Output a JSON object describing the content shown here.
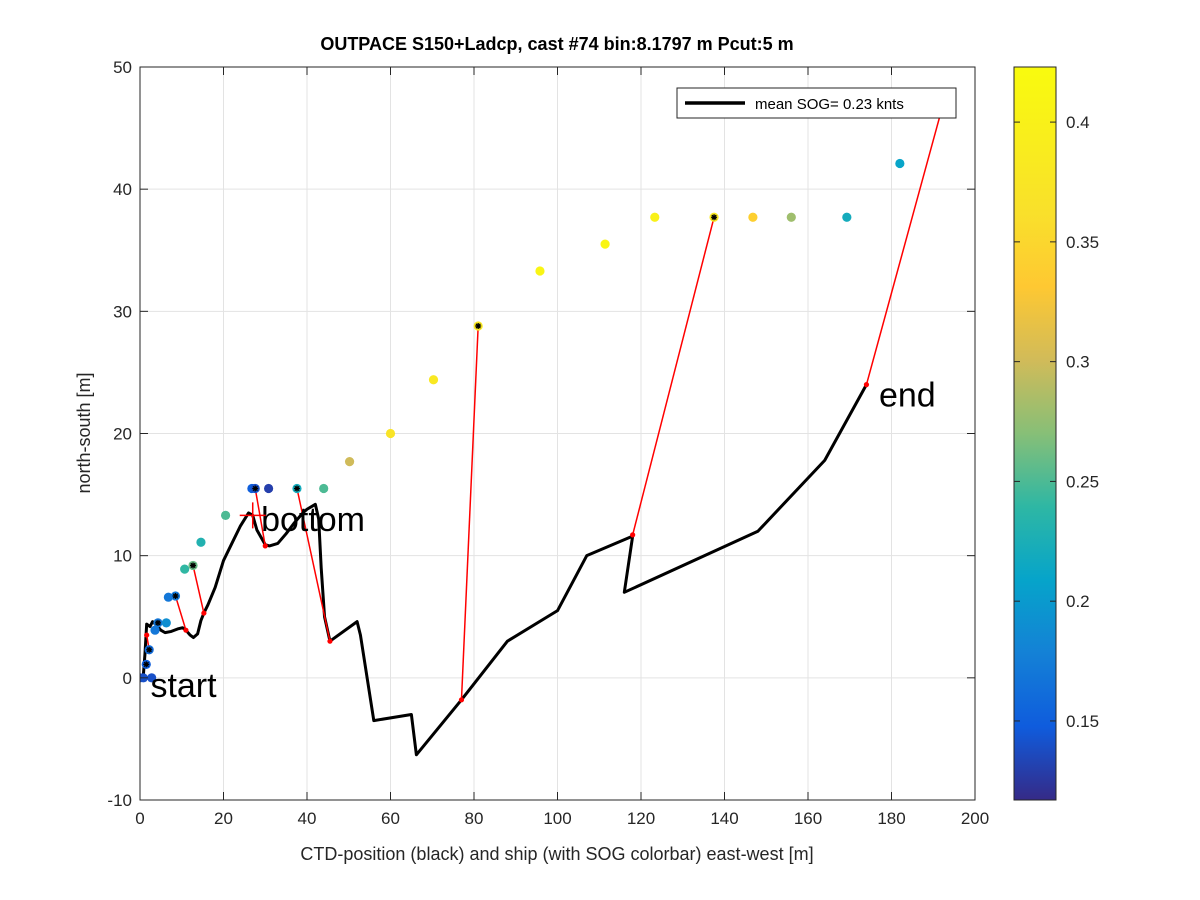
{
  "chart_data": {
    "type": "scatter",
    "title": "OUTPACE S150+Ladcp, cast #74 bin:8.1797 m  Pcut:5 m",
    "xlabel": "CTD-position (black) and ship (with SOG colorbar) east-west [m]",
    "ylabel": "north-south [m]",
    "xlim": [
      0,
      200
    ],
    "ylim": [
      -10,
      50
    ],
    "xticks": [
      0,
      20,
      40,
      60,
      80,
      100,
      120,
      140,
      160,
      180,
      200
    ],
    "yticks": [
      -10,
      0,
      10,
      20,
      30,
      40,
      50
    ],
    "grid": true,
    "legend": {
      "label": "mean SOG=  0.23 knts",
      "placement": "top-right"
    },
    "colorbar": {
      "min": 0.117,
      "max": 0.423,
      "ticks": [
        0.15,
        0.2,
        0.25,
        0.3,
        0.35,
        0.4
      ],
      "tick_labels": [
        "0.15",
        "0.2",
        "0.25",
        "0.3",
        "0.35",
        "0.4"
      ],
      "colormap": "parula"
    },
    "annotations": [
      {
        "text": "start",
        "x": 2.5,
        "y": -0.6
      },
      {
        "text": "bottom",
        "x": 29,
        "y": 13
      },
      {
        "text": "end",
        "x": 177,
        "y": 23.2
      }
    ],
    "bottom_marker": {
      "x": 27,
      "y": 13.3
    },
    "ctd_track": {
      "x": [
        0,
        0.8,
        1.2,
        1.6,
        2.4,
        3.0,
        4.0,
        5.0,
        6.0,
        7.5,
        9.0,
        10.2,
        11.0,
        12.0,
        12.8,
        13.8,
        14.6,
        15.3,
        16.3,
        18.0,
        20.0,
        22.0,
        24.0,
        26.0,
        27.0,
        28.0,
        29.0,
        30.0,
        31.0,
        33.0,
        35.0,
        37.0,
        39.0,
        40.0,
        41.0,
        42.0,
        42.8,
        43.4,
        44.2,
        45.5,
        52.0,
        52.8,
        56.0,
        65.0,
        66.2,
        77.0,
        88.0,
        100.0,
        107.0,
        118.0,
        116.0,
        148.0,
        164.0,
        174.0
      ],
      "y": [
        0,
        0.2,
        2.0,
        4.4,
        4.2,
        4.6,
        4.3,
        3.9,
        3.7,
        3.8,
        4.0,
        4.1,
        3.9,
        3.5,
        3.3,
        3.6,
        4.7,
        5.3,
        6.0,
        7.4,
        9.6,
        11.0,
        12.4,
        13.5,
        13.3,
        12.1,
        11.5,
        10.9,
        10.8,
        11.0,
        11.8,
        12.7,
        13.5,
        13.8,
        14.0,
        14.2,
        13.0,
        9.0,
        5.0,
        3.0,
        4.6,
        3.5,
        -3.5,
        -3.0,
        -6.3,
        -1.8,
        3.0,
        5.5,
        10.0,
        11.6,
        7.0,
        12.0,
        17.8,
        24.0
      ]
    },
    "ship_positions": {
      "x": [
        0,
        0.8,
        1.5,
        2.2,
        2.8,
        3.6,
        4.3,
        6.3,
        6.8,
        8.5,
        10.7,
        12.7,
        14.6,
        20.5,
        26.8,
        27.6,
        30.8,
        37.6,
        44.0,
        50.2,
        60.0,
        70.3,
        81.0,
        95.8,
        111.4,
        123.3,
        137.5,
        146.8,
        156.0,
        169.3,
        182.0
      ],
      "y": [
        0,
        0,
        1.1,
        2.3,
        0,
        3.9,
        4.5,
        4.5,
        6.6,
        6.7,
        8.9,
        9.2,
        11.1,
        13.3,
        15.5,
        15.5,
        15.5,
        15.5,
        15.5,
        17.7,
        20.0,
        24.4,
        28.8,
        33.3,
        35.5,
        37.7,
        37.7,
        37.7,
        37.7,
        37.7,
        42.1
      ],
      "sog": [
        0.13,
        0.14,
        0.15,
        0.16,
        0.14,
        0.17,
        0.17,
        0.19,
        0.17,
        0.17,
        0.24,
        0.26,
        0.23,
        0.25,
        0.15,
        0.14,
        0.13,
        0.22,
        0.25,
        0.3,
        0.37,
        0.38,
        0.38,
        0.41,
        0.41,
        0.4,
        0.38,
        0.34,
        0.28,
        0.22,
        0.21
      ]
    },
    "black_markers": {
      "x": [
        1.5,
        2.2,
        4.3,
        8.5,
        12.7,
        27.6,
        37.6,
        81.0,
        137.5
      ],
      "y": [
        1.1,
        2.3,
        4.5,
        6.7,
        9.2,
        15.5,
        15.5,
        28.8,
        37.7
      ]
    },
    "links": [
      {
        "from": [
          0,
          0
        ],
        "to": [
          0.8,
          0
        ]
      },
      {
        "from": [
          1.6,
          3.5
        ],
        "to": [
          2.2,
          2.3
        ]
      },
      {
        "from": [
          11.0,
          3.9
        ],
        "to": [
          8.5,
          6.7
        ]
      },
      {
        "from": [
          15.3,
          5.3
        ],
        "to": [
          12.7,
          9.2
        ]
      },
      {
        "from": [
          30.0,
          10.8
        ],
        "to": [
          27.6,
          15.5
        ]
      },
      {
        "from": [
          45.5,
          3.0
        ],
        "to": [
          37.6,
          15.5
        ]
      },
      {
        "from": [
          77.0,
          -1.8
        ],
        "to": [
          81.0,
          28.8
        ]
      },
      {
        "from": [
          118.0,
          11.7
        ],
        "to": [
          137.5,
          37.7
        ]
      },
      {
        "from": [
          174.0,
          24.0
        ],
        "to": [
          192.0,
          46.5
        ]
      }
    ]
  }
}
